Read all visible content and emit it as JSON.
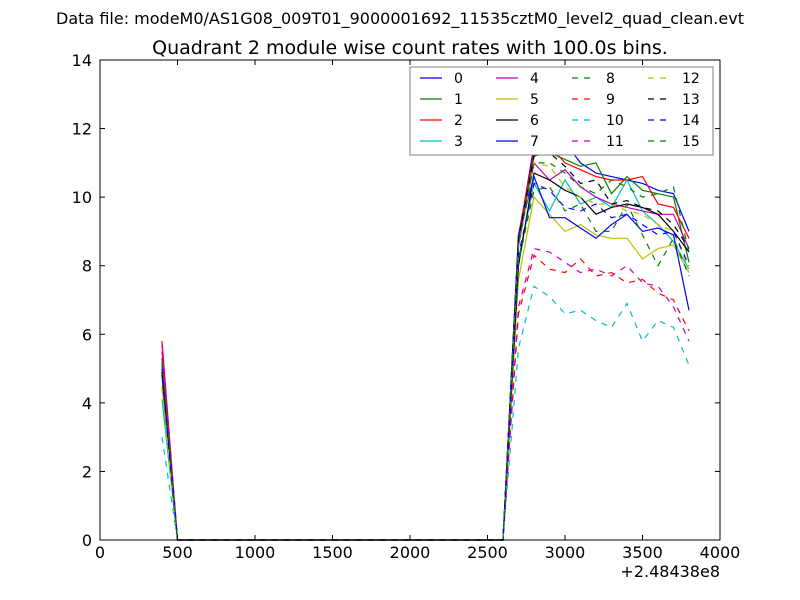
{
  "figure": {
    "suptitle": "Data file: modeM0/AS1G08_009T01_9000001692_11535cztM0_level2_quad_clean.evt",
    "title": "Quadrant 2 module wise count rates with 100.0s bins.",
    "x_offset_label": "+2.48438e8"
  },
  "chart_data": {
    "type": "line",
    "title": "Quadrant 2 module wise count rates with 100.0s bins.",
    "xlabel": "",
    "ylabel": "",
    "xlim": [
      0,
      4000
    ],
    "ylim": [
      0,
      14
    ],
    "x_ticks": [
      0,
      500,
      1000,
      1500,
      2000,
      2500,
      3000,
      3500,
      4000
    ],
    "y_ticks": [
      0,
      2,
      4,
      6,
      8,
      10,
      12,
      14
    ],
    "x_tick_labels": [
      "0",
      "500",
      "1000",
      "1500",
      "2000",
      "2500",
      "3000",
      "3500",
      "4000"
    ],
    "y_tick_labels": [
      "0",
      "2",
      "4",
      "6",
      "8",
      "10",
      "12",
      "14"
    ],
    "x_offset": "+2.48438e8",
    "grid": false,
    "legend_placement": "top-right",
    "legend_columns": 4,
    "x": [
      400,
      500,
      600,
      700,
      800,
      900,
      1000,
      1100,
      1200,
      1300,
      1400,
      1500,
      1600,
      1700,
      1800,
      1900,
      2000,
      2100,
      2200,
      2300,
      2400,
      2500,
      2600,
      2700,
      2800,
      2900,
      3000,
      3100,
      3200,
      3300,
      3400,
      3500,
      3600,
      3700,
      3800
    ],
    "series": [
      {
        "name": "0",
        "color": "#0000ff",
        "dash": "solid",
        "values": [
          5.3,
          0,
          0,
          0,
          0,
          0,
          0,
          0,
          0,
          0,
          0,
          0,
          0,
          0,
          0,
          0,
          0,
          0,
          0,
          0,
          0,
          0,
          0,
          8.8,
          11.5,
          12.0,
          11.6,
          11.0,
          10.7,
          10.6,
          10.5,
          10.4,
          10.2,
          10.1,
          9.0
        ]
      },
      {
        "name": "1",
        "color": "#008000",
        "dash": "solid",
        "values": [
          5.1,
          0,
          0,
          0,
          0,
          0,
          0,
          0,
          0,
          0,
          0,
          0,
          0,
          0,
          0,
          0,
          0,
          0,
          0,
          0,
          0,
          0,
          0,
          8.7,
          11.2,
          11.3,
          11.1,
          10.9,
          11.0,
          10.1,
          10.6,
          10.2,
          10.1,
          10.0,
          8.1
        ]
      },
      {
        "name": "2",
        "color": "#ff0000",
        "dash": "solid",
        "values": [
          5.8,
          0,
          0,
          0,
          0,
          0,
          0,
          0,
          0,
          0,
          0,
          0,
          0,
          0,
          0,
          0,
          0,
          0,
          0,
          0,
          0,
          0,
          0,
          8.9,
          11.3,
          11.5,
          11.0,
          10.8,
          10.6,
          10.5,
          10.5,
          10.6,
          9.8,
          9.7,
          8.8
        ]
      },
      {
        "name": "3",
        "color": "#00bfbf",
        "dash": "solid",
        "values": [
          4.1,
          0,
          0,
          0,
          0,
          0,
          0,
          0,
          0,
          0,
          0,
          0,
          0,
          0,
          0,
          0,
          0,
          0,
          0,
          0,
          0,
          0,
          0,
          8.2,
          10.4,
          9.6,
          10.5,
          9.8,
          10.0,
          9.7,
          10.5,
          9.6,
          9.2,
          8.7,
          7.9
        ]
      },
      {
        "name": "4",
        "color": "#bf00bf",
        "dash": "solid",
        "values": [
          5.5,
          0,
          0,
          0,
          0,
          0,
          0,
          0,
          0,
          0,
          0,
          0,
          0,
          0,
          0,
          0,
          0,
          0,
          0,
          0,
          0,
          0,
          0,
          8.6,
          11.0,
          10.5,
          10.8,
          10.3,
          10.0,
          9.8,
          9.7,
          9.6,
          9.5,
          9.5,
          8.5
        ]
      },
      {
        "name": "5",
        "color": "#bfbf00",
        "dash": "solid",
        "values": [
          4.5,
          0,
          0,
          0,
          0,
          0,
          0,
          0,
          0,
          0,
          0,
          0,
          0,
          0,
          0,
          0,
          0,
          0,
          0,
          0,
          0,
          0,
          0,
          7.6,
          10.0,
          9.5,
          9.0,
          9.2,
          8.9,
          8.8,
          8.8,
          8.2,
          8.5,
          8.6,
          7.8
        ]
      },
      {
        "name": "6",
        "color": "#000000",
        "dash": "solid",
        "values": [
          4.8,
          0,
          0,
          0,
          0,
          0,
          0,
          0,
          0,
          0,
          0,
          0,
          0,
          0,
          0,
          0,
          0,
          0,
          0,
          0,
          0,
          0,
          0,
          8.0,
          10.7,
          10.5,
          10.2,
          10.0,
          9.5,
          9.7,
          9.8,
          9.7,
          9.5,
          9.0,
          8.4
        ]
      },
      {
        "name": "7",
        "color": "#0000ff",
        "dash": "solid",
        "values": [
          4.9,
          0,
          0,
          0,
          0,
          0,
          0,
          0,
          0,
          0,
          0,
          0,
          0,
          0,
          0,
          0,
          0,
          0,
          0,
          0,
          0,
          0,
          0,
          8.9,
          10.6,
          9.4,
          9.4,
          9.1,
          8.8,
          9.2,
          9.5,
          9.0,
          9.1,
          8.9,
          6.7
        ]
      },
      {
        "name": "8",
        "color": "#008000",
        "dash": "dashed",
        "values": [
          5.3,
          0,
          0,
          0,
          0,
          0,
          0,
          0,
          0,
          0,
          0,
          0,
          0,
          0,
          0,
          0,
          0,
          0,
          0,
          0,
          0,
          0,
          0,
          8.1,
          10.2,
          10.3,
          9.6,
          9.8,
          9.0,
          9.0,
          9.8,
          8.9,
          8.0,
          8.8,
          7.7
        ]
      },
      {
        "name": "9",
        "color": "#ff0000",
        "dash": "dashed",
        "values": [
          5.3,
          0,
          0,
          0,
          0,
          0,
          0,
          0,
          0,
          0,
          0,
          0,
          0,
          0,
          0,
          0,
          0,
          0,
          0,
          0,
          0,
          0,
          0,
          6.6,
          8.3,
          7.9,
          7.8,
          8.2,
          7.7,
          7.8,
          7.5,
          7.6,
          7.2,
          7.0,
          6.1
        ]
      },
      {
        "name": "10",
        "color": "#00bfbf",
        "dash": "dashed",
        "values": [
          3.0,
          0,
          0,
          0,
          0,
          0,
          0,
          0,
          0,
          0,
          0,
          0,
          0,
          0,
          0,
          0,
          0,
          0,
          0,
          0,
          0,
          0,
          0,
          5.6,
          7.4,
          7.1,
          6.6,
          6.7,
          6.4,
          6.2,
          6.9,
          5.8,
          6.4,
          6.2,
          5.1
        ]
      },
      {
        "name": "11",
        "color": "#bf00bf",
        "dash": "dashed",
        "values": [
          5.7,
          0,
          0,
          0,
          0,
          0,
          0,
          0,
          0,
          0,
          0,
          0,
          0,
          0,
          0,
          0,
          0,
          0,
          0,
          0,
          0,
          0,
          0,
          6.8,
          8.5,
          8.4,
          8.1,
          7.8,
          7.9,
          7.7,
          8.0,
          7.5,
          7.4,
          6.8,
          5.8
        ]
      },
      {
        "name": "12",
        "color": "#bfbf00",
        "dash": "dashed",
        "values": [
          4.4,
          0,
          0,
          0,
          0,
          0,
          0,
          0,
          0,
          0,
          0,
          0,
          0,
          0,
          0,
          0,
          0,
          0,
          0,
          0,
          0,
          0,
          0,
          8.5,
          11.0,
          10.9,
          10.3,
          10.0,
          9.8,
          9.8,
          9.6,
          9.5,
          9.2,
          9.0,
          7.9
        ]
      },
      {
        "name": "13",
        "color": "#000000",
        "dash": "dashed",
        "values": [
          4.9,
          0,
          0,
          0,
          0,
          0,
          0,
          0,
          0,
          0,
          0,
          0,
          0,
          0,
          0,
          0,
          0,
          0,
          0,
          0,
          0,
          0,
          0,
          8.8,
          11.2,
          11.3,
          10.9,
          10.4,
          10.5,
          9.8,
          9.9,
          9.7,
          9.6,
          9.2,
          8.5
        ]
      },
      {
        "name": "14",
        "color": "#0000ff",
        "dash": "dashed",
        "values": [
          5.0,
          0,
          0,
          0,
          0,
          0,
          0,
          0,
          0,
          0,
          0,
          0,
          0,
          0,
          0,
          0,
          0,
          0,
          0,
          0,
          0,
          0,
          0,
          8.3,
          10.4,
          10.2,
          9.7,
          9.6,
          9.8,
          9.4,
          9.5,
          9.2,
          8.9,
          9.0,
          8.0
        ]
      },
      {
        "name": "15",
        "color": "#008000",
        "dash": "dashed",
        "values": [
          5.2,
          0,
          0,
          0,
          0,
          0,
          0,
          0,
          0,
          0,
          0,
          0,
          0,
          0,
          0,
          0,
          0,
          0,
          0,
          0,
          0,
          0,
          0,
          8.6,
          11.0,
          11.0,
          10.7,
          10.3,
          10.1,
          10.5,
          10.3,
          10.0,
          10.1,
          10.3,
          8.4
        ]
      }
    ]
  }
}
